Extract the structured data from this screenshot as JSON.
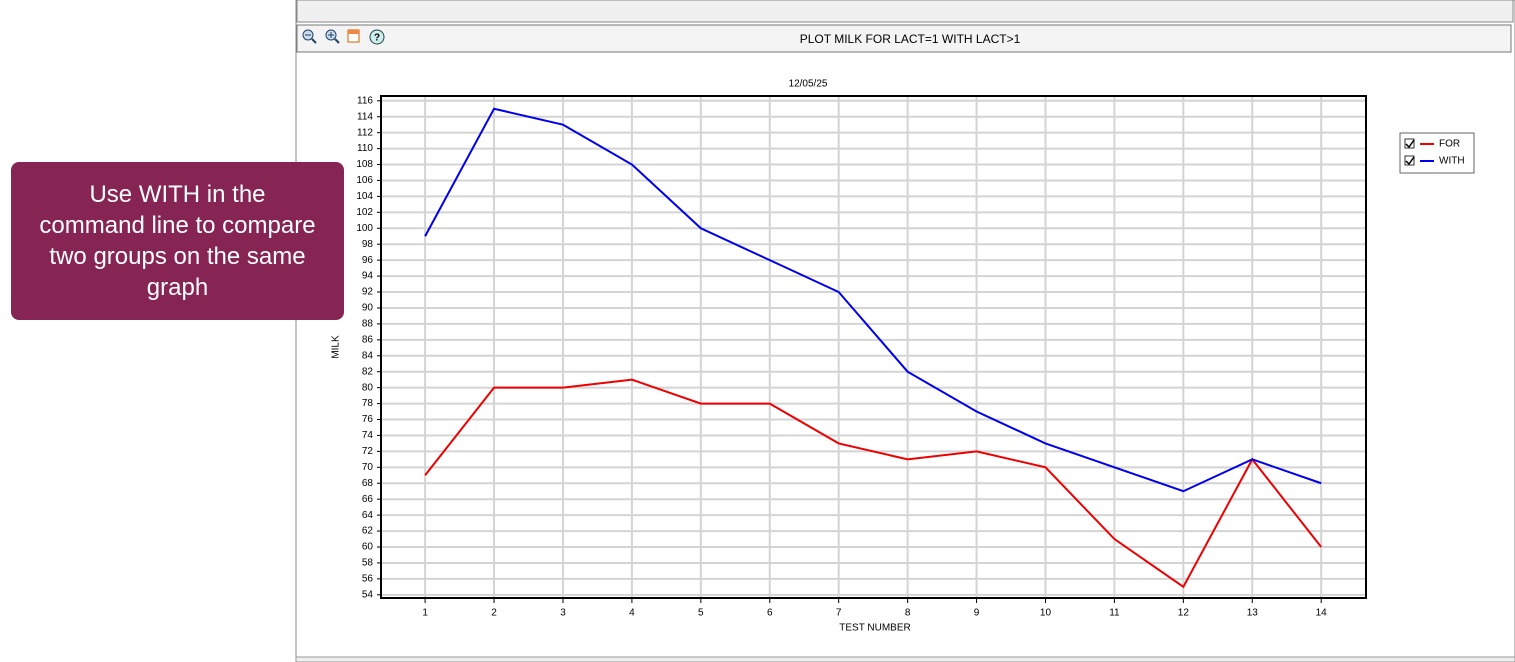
{
  "callout": {
    "lines": [
      "Use WITH in the",
      "command line to compare",
      "two groups on the same",
      "graph"
    ]
  },
  "chart_data": {
    "type": "line",
    "title": "PLOT MILK FOR LACT=1 WITH LACT>1",
    "subtitle": "12/05/25",
    "xlabel": "TEST NUMBER",
    "ylabel": "MILK",
    "x": [
      1,
      2,
      3,
      4,
      5,
      6,
      7,
      8,
      9,
      10,
      11,
      12,
      13,
      14
    ],
    "xlim": [
      0.36,
      14.65
    ],
    "xticks": [
      1,
      2,
      3,
      4,
      5,
      6,
      7,
      8,
      9,
      10,
      11,
      12,
      13,
      14
    ],
    "ylim": [
      53.6,
      116.6
    ],
    "yticks": [
      54,
      56,
      58,
      60,
      62,
      64,
      66,
      68,
      70,
      72,
      74,
      76,
      78,
      80,
      82,
      84,
      86,
      88,
      90,
      92,
      94,
      96,
      98,
      100,
      102,
      104,
      106,
      108,
      110,
      112,
      114,
      116
    ],
    "grid": true,
    "legend": "right",
    "series": [
      {
        "name": "FOR",
        "color": "#ee0000",
        "values": [
          69,
          80,
          80,
          81,
          78,
          78,
          73,
          71,
          72,
          70,
          61,
          55,
          71,
          60
        ]
      },
      {
        "name": "WITH",
        "color": "#0000ee",
        "values": [
          99,
          115,
          113,
          108,
          100,
          96,
          92,
          82,
          77,
          73,
          70,
          67,
          71,
          68
        ]
      }
    ]
  }
}
